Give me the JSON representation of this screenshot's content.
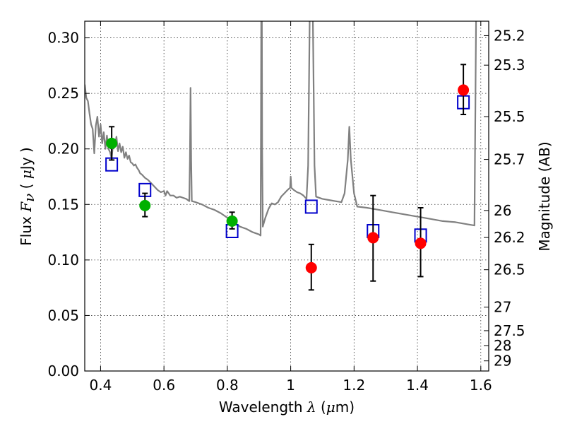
{
  "chart_data": {
    "type": "scatter",
    "xlabel_prefix": "Wavelength",
    "xlabel_symbol": "λ",
    "xlabel_unit_open": " (",
    "xlabel_unit_mu": "μ",
    "xlabel_unit_rest": "m)",
    "ylabel_prefix": "Flux",
    "ylabel_symbol": "F",
    "ylabel_subscript": "ν",
    "ylabel_unit_open": " ( ",
    "ylabel_unit_mu": "μ",
    "ylabel_unit_rest": "Jy )",
    "y2label": "Magnitude (AB)",
    "xlim": [
      0.35,
      1.625
    ],
    "ylim": [
      0.0,
      0.315
    ],
    "grid": true,
    "x_ticks": [
      0.4,
      0.6,
      0.8,
      1.0,
      1.2,
      1.4,
      1.6
    ],
    "x_tick_labels": [
      "0.4",
      "0.6",
      "0.8",
      "1",
      "1.2",
      "1.4",
      "1.6"
    ],
    "y_ticks": [
      0.0,
      0.05,
      0.1,
      0.15,
      0.2,
      0.25,
      0.3
    ],
    "y_tick_labels": [
      "0.00",
      "0.05",
      "0.10",
      "0.15",
      "0.20",
      "0.25",
      "0.30"
    ],
    "mag_ticks": [
      25.2,
      25.3,
      25.5,
      25.7,
      26,
      26.2,
      26.5,
      27,
      27.5,
      28,
      29
    ],
    "mag_tick_labels": [
      "25.2",
      "25.3",
      "25.5",
      "25.7",
      "26",
      "26.2",
      "26.5",
      "27",
      "27.5",
      "28",
      "29"
    ],
    "colors": {
      "model": "#808080",
      "green": "#00b000",
      "red": "#ff0000",
      "model_box": "#0000cc",
      "errorbar": "#000000"
    },
    "series": [
      {
        "kind": "model_spectrum",
        "points": [
          [
            0.35,
            0.258
          ],
          [
            0.355,
            0.246
          ],
          [
            0.36,
            0.243
          ],
          [
            0.365,
            0.232
          ],
          [
            0.37,
            0.222
          ],
          [
            0.375,
            0.218
          ],
          [
            0.38,
            0.196
          ],
          [
            0.385,
            0.221
          ],
          [
            0.39,
            0.229
          ],
          [
            0.395,
            0.211
          ],
          [
            0.4,
            0.222
          ],
          [
            0.405,
            0.205
          ],
          [
            0.41,
            0.215
          ],
          [
            0.415,
            0.2
          ],
          [
            0.42,
            0.212
          ],
          [
            0.425,
            0.2
          ],
          [
            0.43,
            0.197
          ],
          [
            0.435,
            0.191
          ],
          [
            0.44,
            0.207
          ],
          [
            0.445,
            0.203
          ],
          [
            0.45,
            0.211
          ],
          [
            0.455,
            0.198
          ],
          [
            0.46,
            0.205
          ],
          [
            0.465,
            0.197
          ],
          [
            0.47,
            0.202
          ],
          [
            0.475,
            0.192
          ],
          [
            0.48,
            0.197
          ],
          [
            0.485,
            0.191
          ],
          [
            0.49,
            0.194
          ],
          [
            0.495,
            0.188
          ],
          [
            0.5,
            0.187
          ],
          [
            0.505,
            0.185
          ],
          [
            0.51,
            0.186
          ],
          [
            0.515,
            0.183
          ],
          [
            0.52,
            0.181
          ],
          [
            0.525,
            0.178
          ],
          [
            0.53,
            0.177
          ],
          [
            0.54,
            0.174
          ],
          [
            0.55,
            0.172
          ],
          [
            0.56,
            0.169
          ],
          [
            0.57,
            0.166
          ],
          [
            0.58,
            0.163
          ],
          [
            0.59,
            0.161
          ],
          [
            0.6,
            0.162
          ],
          [
            0.605,
            0.158
          ],
          [
            0.61,
            0.162
          ],
          [
            0.615,
            0.16
          ],
          [
            0.62,
            0.158
          ],
          [
            0.63,
            0.158
          ],
          [
            0.64,
            0.156
          ],
          [
            0.65,
            0.157
          ],
          [
            0.66,
            0.156
          ],
          [
            0.67,
            0.155
          ],
          [
            0.68,
            0.153
          ],
          [
            0.682,
            0.19
          ],
          [
            0.684,
            0.255
          ],
          [
            0.686,
            0.19
          ],
          [
            0.688,
            0.153
          ],
          [
            0.7,
            0.152
          ],
          [
            0.72,
            0.15
          ],
          [
            0.74,
            0.147
          ],
          [
            0.76,
            0.145
          ],
          [
            0.78,
            0.142
          ],
          [
            0.8,
            0.138
          ],
          [
            0.82,
            0.134
          ],
          [
            0.84,
            0.13
          ],
          [
            0.86,
            0.128
          ],
          [
            0.88,
            0.125
          ],
          [
            0.9,
            0.123
          ],
          [
            0.905,
            0.122
          ],
          [
            0.906,
            0.2
          ],
          [
            0.907,
            0.318
          ],
          [
            0.909,
            0.318
          ],
          [
            0.91,
            0.2
          ],
          [
            0.912,
            0.13
          ],
          [
            0.92,
            0.138
          ],
          [
            0.93,
            0.146
          ],
          [
            0.94,
            0.151
          ],
          [
            0.95,
            0.15
          ],
          [
            0.96,
            0.152
          ],
          [
            0.97,
            0.157
          ],
          [
            0.98,
            0.16
          ],
          [
            0.99,
            0.163
          ],
          [
            0.998,
            0.165
          ],
          [
            1.0,
            0.175
          ],
          [
            1.002,
            0.165
          ],
          [
            1.01,
            0.163
          ],
          [
            1.02,
            0.161
          ],
          [
            1.03,
            0.16
          ],
          [
            1.04,
            0.158
          ],
          [
            1.05,
            0.155
          ],
          [
            1.055,
            0.185
          ],
          [
            1.06,
            0.318
          ],
          [
            1.07,
            0.318
          ],
          [
            1.075,
            0.185
          ],
          [
            1.08,
            0.157
          ],
          [
            1.1,
            0.155
          ],
          [
            1.12,
            0.154
          ],
          [
            1.14,
            0.153
          ],
          [
            1.16,
            0.152
          ],
          [
            1.17,
            0.16
          ],
          [
            1.18,
            0.19
          ],
          [
            1.185,
            0.22
          ],
          [
            1.19,
            0.19
          ],
          [
            1.2,
            0.16
          ],
          [
            1.21,
            0.148
          ],
          [
            1.24,
            0.147
          ],
          [
            1.28,
            0.145
          ],
          [
            1.32,
            0.143
          ],
          [
            1.36,
            0.141
          ],
          [
            1.4,
            0.139
          ],
          [
            1.44,
            0.137
          ],
          [
            1.48,
            0.135
          ],
          [
            1.52,
            0.134
          ],
          [
            1.56,
            0.132
          ],
          [
            1.58,
            0.131
          ],
          [
            1.585,
            0.318
          ],
          [
            1.625,
            0.318
          ]
        ]
      },
      {
        "kind": "model_bands",
        "points": [
          [
            0.435,
            0.186
          ],
          [
            0.54,
            0.163
          ],
          [
            0.815,
            0.126
          ],
          [
            1.065,
            0.148
          ],
          [
            1.26,
            0.126
          ],
          [
            1.41,
            0.122
          ],
          [
            1.545,
            0.242
          ]
        ]
      },
      {
        "kind": "observed_green",
        "points": [
          {
            "x": 0.435,
            "y": 0.205,
            "err_lo": 0.19,
            "err_hi": 0.22
          },
          {
            "x": 0.54,
            "y": 0.149,
            "err_lo": 0.139,
            "err_hi": 0.16
          },
          {
            "x": 0.815,
            "y": 0.135,
            "err_lo": 0.128,
            "err_hi": 0.143
          }
        ]
      },
      {
        "kind": "observed_red",
        "points": [
          {
            "x": 1.065,
            "y": 0.093,
            "err_lo": 0.073,
            "err_hi": 0.114
          },
          {
            "x": 1.26,
            "y": 0.12,
            "err_lo": 0.081,
            "err_hi": 0.158
          },
          {
            "x": 1.41,
            "y": 0.115,
            "err_lo": 0.085,
            "err_hi": 0.147
          },
          {
            "x": 1.545,
            "y": 0.253,
            "err_lo": 0.231,
            "err_hi": 0.276
          }
        ]
      }
    ]
  }
}
